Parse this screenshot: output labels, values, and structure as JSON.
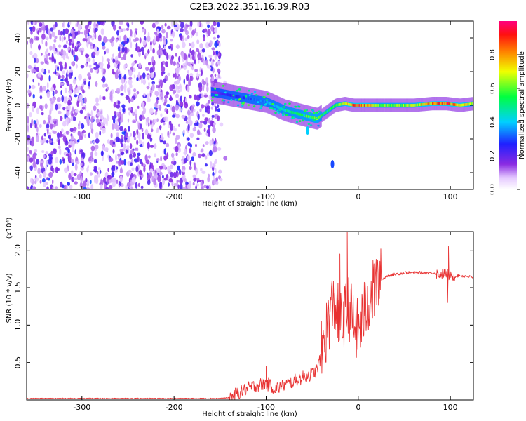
{
  "title": "C2E3.2022.351.16.39.R03",
  "colors": {
    "snr_line": "#e83232",
    "plot_bg": "#ffffff",
    "axis": "#000000"
  },
  "chart_data": [
    {
      "type": "heatmap",
      "xlabel": "Height of straight line (km)",
      "ylabel": "Frequency (Hz)",
      "xlim": [
        -360,
        125
      ],
      "ylim": [
        -50,
        50
      ],
      "x_ticks": [
        -300,
        -200,
        -100,
        0,
        100
      ],
      "x_tick_labels": [
        "-300",
        "-200",
        "-100",
        "0",
        "100"
      ],
      "y_ticks": [
        -40,
        -20,
        0,
        20,
        40
      ],
      "y_tick_labels": [
        "-40",
        "-20",
        "0",
        "20",
        "40"
      ],
      "colorbar": {
        "label": "Normalized spectral amplitude",
        "range": [
          0.0,
          1.0
        ],
        "ticks": [
          0.0,
          0.2,
          0.4,
          0.6,
          0.8
        ],
        "tick_labels": [
          "0.0",
          "0.2",
          "0.4",
          "0.6",
          "0.8"
        ],
        "colormap": "rainbow (white-violet-blue-cyan-green-yellow-red-magenta)"
      },
      "noise_region": {
        "x_range": [
          -360,
          -150
        ],
        "amplitude": 0.15
      },
      "ridge": {
        "x": [
          -160,
          -140,
          -120,
          -100,
          -80,
          -60,
          -45,
          -35,
          -25,
          -15,
          -5,
          0,
          20,
          40,
          60,
          80,
          95,
          110,
          125
        ],
        "frequency": [
          8,
          6,
          4,
          2,
          -3,
          -6,
          -8,
          -4,
          0,
          1,
          0,
          0,
          0,
          0,
          0,
          1,
          1,
          0,
          1
        ],
        "amplitude": [
          0.15,
          0.25,
          0.3,
          0.35,
          0.45,
          0.55,
          0.6,
          0.5,
          0.55,
          0.7,
          0.85,
          0.9,
          0.6,
          0.6,
          0.65,
          0.8,
          0.9,
          0.8,
          0.6
        ]
      },
      "features": [
        {
          "x": -55,
          "frequency": -15,
          "amplitude": 0.4
        },
        {
          "x": -28,
          "frequency": -35,
          "amplitude": 0.3
        }
      ]
    },
    {
      "type": "line",
      "xlabel": "Height of straight line (km)",
      "ylabel": "SNR (10 * v/v)",
      "y_scale_label": "(x10⁴)",
      "xlim": [
        -360,
        125
      ],
      "ylim": [
        0,
        2.25
      ],
      "x_ticks": [
        -300,
        -200,
        -100,
        0,
        100
      ],
      "x_tick_labels": [
        "-300",
        "-200",
        "-100",
        "0",
        "100"
      ],
      "y_ticks": [
        0.5,
        1.0,
        1.5,
        2.0
      ],
      "y_tick_labels": [
        "0.5",
        "1.0",
        "1.5",
        "2.0"
      ],
      "series": [
        {
          "x": [
            -360,
            -300,
            -250,
            -200,
            -150,
            -140,
            -130,
            -120,
            -110,
            -100,
            -90,
            -80,
            -70,
            -60,
            -50,
            -45,
            -40,
            -35,
            -30,
            -25,
            -20,
            -15,
            -10,
            -5,
            0,
            5,
            10,
            15,
            20,
            25,
            30,
            40,
            50,
            60,
            70,
            80,
            90,
            95,
            100,
            110,
            120,
            125
          ],
          "values": [
            0.02,
            0.02,
            0.02,
            0.02,
            0.02,
            0.03,
            0.1,
            0.15,
            0.2,
            0.22,
            0.15,
            0.2,
            0.25,
            0.3,
            0.35,
            0.4,
            0.6,
            0.9,
            1.2,
            1.3,
            1.0,
            1.1,
            1.25,
            1.0,
            0.9,
            1.1,
            1.3,
            1.4,
            1.55,
            1.6,
            1.65,
            1.68,
            1.7,
            1.7,
            1.7,
            1.7,
            1.68,
            1.7,
            1.65,
            1.66,
            1.65,
            1.63
          ]
        }
      ],
      "spikes": [
        {
          "x": -12,
          "value": 2.25
        },
        {
          "x": -20,
          "value": 1.95
        },
        {
          "x": 98,
          "value": 2.05
        },
        {
          "x": 97,
          "value": 1.3
        },
        {
          "x": -100,
          "value": 0.45
        }
      ]
    }
  ]
}
